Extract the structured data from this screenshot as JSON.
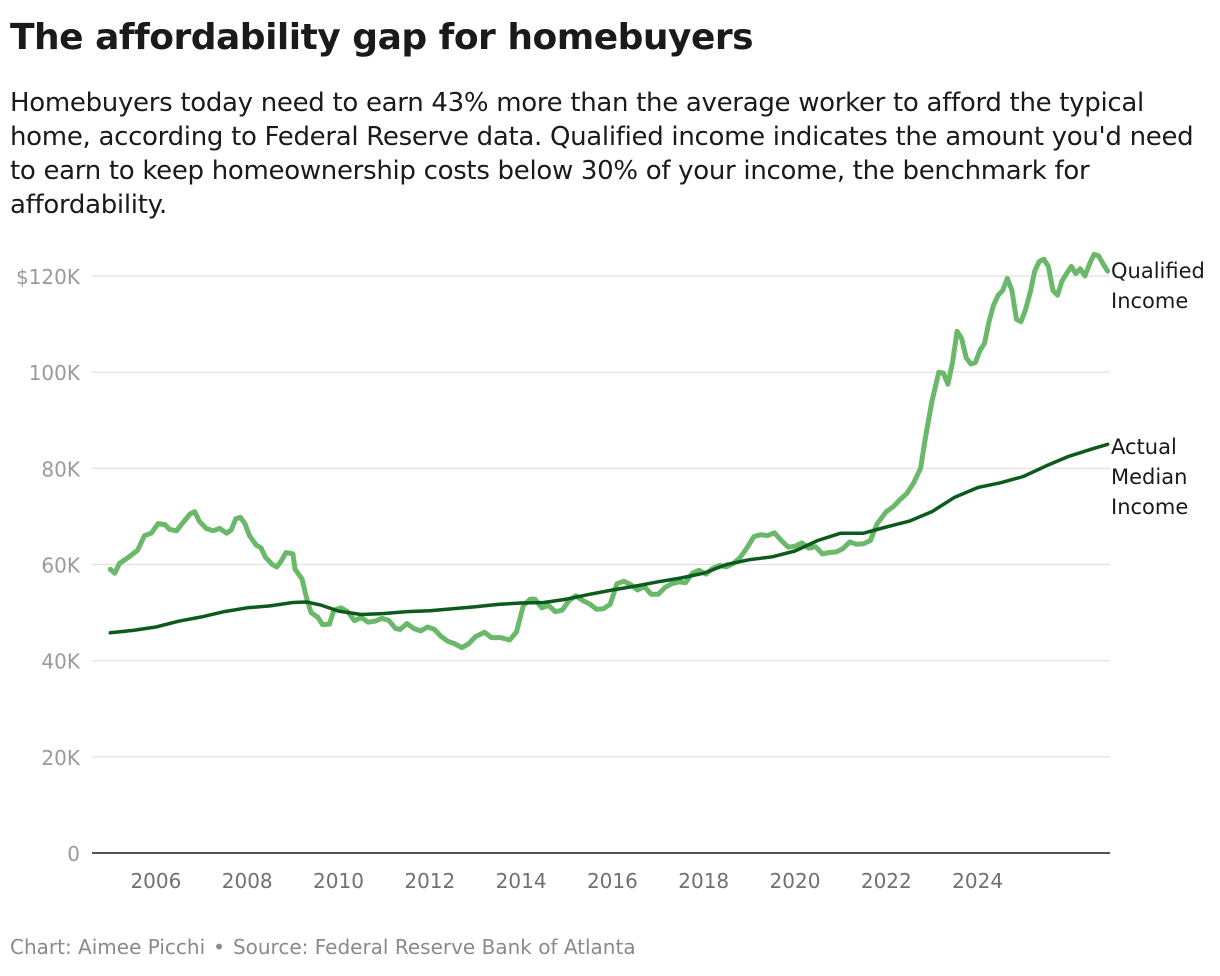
{
  "header": {
    "title": "The affordability gap for homebuyers",
    "subtitle": "Homebuyers today need to earn 43% more than the average worker to afford the typical home, according to Federal Reserve data. Qualified income indicates the amount you'd need to earn to keep homeownership costs below 30% of your income, the benchmark for affordability."
  },
  "footer": {
    "credit": "Chart: Aimee Picchi",
    "separator": "•",
    "source": "Source: Federal Reserve Bank of Atlanta"
  },
  "colors": {
    "qualified": "#6ab96a",
    "actual": "#0d5a1d",
    "grid": "#e0e0e0",
    "axis": "#1a1a1a",
    "tick_text": "#9a9a9a",
    "label_text": "#1a1a1a"
  },
  "chart_data": {
    "type": "line",
    "xlabel": "",
    "ylabel": "",
    "xlim": [
      2004.8,
      2026.0
    ],
    "ylim": [
      0,
      120000
    ],
    "grid": true,
    "legend_placement": "direct labels at right end of lines",
    "x_ticks": [
      {
        "value": 2006,
        "label": "2006"
      },
      {
        "value": 2008,
        "label": "2008"
      },
      {
        "value": 2010,
        "label": "2010"
      },
      {
        "value": 2012,
        "label": "2012"
      },
      {
        "value": 2014,
        "label": "2014"
      },
      {
        "value": 2016,
        "label": "2016"
      },
      {
        "value": 2018,
        "label": "2018"
      },
      {
        "value": 2020,
        "label": "2020"
      },
      {
        "value": 2022,
        "label": "2022"
      },
      {
        "value": 2024,
        "label": "2024"
      }
    ],
    "y_ticks": [
      {
        "value": 0,
        "label": "0"
      },
      {
        "value": 20000,
        "label": "20K"
      },
      {
        "value": 40000,
        "label": "40K"
      },
      {
        "value": 60000,
        "label": "60K"
      },
      {
        "value": 80000,
        "label": "80K"
      },
      {
        "value": 100000,
        "label": "100K"
      },
      {
        "value": 120000,
        "label": "$120K"
      }
    ],
    "series": [
      {
        "name": "Qualified Income",
        "label_lines": [
          "Qualified",
          "Income"
        ],
        "color_key": "qualified",
        "points": [
          [
            2005.0,
            59000
          ],
          [
            2005.1,
            58200
          ],
          [
            2005.2,
            60200
          ],
          [
            2005.4,
            61500
          ],
          [
            2005.6,
            63000
          ],
          [
            2005.75,
            66000
          ],
          [
            2005.9,
            66500
          ],
          [
            2006.05,
            68500
          ],
          [
            2006.2,
            68300
          ],
          [
            2006.3,
            67300
          ],
          [
            2006.45,
            67000
          ],
          [
            2006.6,
            68800
          ],
          [
            2006.75,
            70500
          ],
          [
            2006.85,
            71000
          ],
          [
            2006.95,
            69000
          ],
          [
            2007.1,
            67500
          ],
          [
            2007.25,
            67000
          ],
          [
            2007.4,
            67500
          ],
          [
            2007.55,
            66500
          ],
          [
            2007.65,
            67200
          ],
          [
            2007.75,
            69500
          ],
          [
            2007.85,
            69800
          ],
          [
            2007.95,
            68500
          ],
          [
            2008.05,
            66000
          ],
          [
            2008.2,
            64000
          ],
          [
            2008.3,
            63500
          ],
          [
            2008.4,
            61500
          ],
          [
            2008.55,
            60000
          ],
          [
            2008.65,
            59500
          ],
          [
            2008.75,
            60800
          ],
          [
            2008.85,
            62500
          ],
          [
            2009.0,
            62200
          ],
          [
            2009.05,
            59000
          ],
          [
            2009.2,
            57000
          ],
          [
            2009.3,
            53000
          ],
          [
            2009.4,
            50000
          ],
          [
            2009.55,
            49000
          ],
          [
            2009.65,
            47500
          ],
          [
            2009.8,
            47600
          ],
          [
            2009.9,
            50500
          ],
          [
            2010.05,
            51000
          ],
          [
            2010.2,
            50200
          ],
          [
            2010.35,
            48300
          ],
          [
            2010.5,
            49000
          ],
          [
            2010.65,
            48000
          ],
          [
            2010.8,
            48200
          ],
          [
            2010.95,
            48800
          ],
          [
            2011.1,
            48400
          ],
          [
            2011.25,
            46700
          ],
          [
            2011.35,
            46500
          ],
          [
            2011.5,
            47700
          ],
          [
            2011.65,
            46700
          ],
          [
            2011.8,
            46200
          ],
          [
            2011.95,
            47000
          ],
          [
            2012.1,
            46500
          ],
          [
            2012.25,
            45000
          ],
          [
            2012.4,
            44000
          ],
          [
            2012.55,
            43500
          ],
          [
            2012.7,
            42700
          ],
          [
            2012.85,
            43500
          ],
          [
            2013.0,
            45000
          ],
          [
            2013.2,
            45900
          ],
          [
            2013.35,
            44800
          ],
          [
            2013.55,
            44800
          ],
          [
            2013.75,
            44300
          ],
          [
            2013.9,
            46000
          ],
          [
            2014.05,
            51500
          ],
          [
            2014.2,
            52800
          ],
          [
            2014.3,
            52800
          ],
          [
            2014.45,
            51000
          ],
          [
            2014.6,
            51500
          ],
          [
            2014.75,
            50200
          ],
          [
            2014.9,
            50500
          ],
          [
            2015.05,
            52500
          ],
          [
            2015.2,
            53500
          ],
          [
            2015.35,
            52500
          ],
          [
            2015.5,
            51800
          ],
          [
            2015.65,
            50700
          ],
          [
            2015.8,
            50800
          ],
          [
            2015.95,
            51700
          ],
          [
            2016.1,
            56000
          ],
          [
            2016.25,
            56500
          ],
          [
            2016.4,
            55800
          ],
          [
            2016.55,
            54700
          ],
          [
            2016.7,
            55400
          ],
          [
            2016.85,
            53800
          ],
          [
            2017.0,
            53800
          ],
          [
            2017.15,
            55200
          ],
          [
            2017.3,
            56000
          ],
          [
            2017.45,
            56400
          ],
          [
            2017.6,
            56200
          ],
          [
            2017.75,
            58200
          ],
          [
            2017.9,
            58800
          ],
          [
            2018.05,
            58000
          ],
          [
            2018.2,
            59200
          ],
          [
            2018.35,
            59800
          ],
          [
            2018.5,
            59500
          ],
          [
            2018.65,
            60200
          ],
          [
            2018.8,
            61500
          ],
          [
            2018.95,
            63500
          ],
          [
            2019.1,
            65800
          ],
          [
            2019.25,
            66200
          ],
          [
            2019.4,
            66000
          ],
          [
            2019.55,
            66600
          ],
          [
            2019.7,
            65000
          ],
          [
            2019.85,
            63600
          ],
          [
            2020.0,
            63800
          ],
          [
            2020.15,
            64500
          ],
          [
            2020.3,
            63400
          ],
          [
            2020.45,
            63700
          ],
          [
            2020.6,
            62200
          ],
          [
            2020.75,
            62500
          ],
          [
            2020.9,
            62600
          ],
          [
            2021.05,
            63300
          ],
          [
            2021.2,
            64700
          ],
          [
            2021.35,
            64200
          ],
          [
            2021.5,
            64300
          ],
          [
            2021.65,
            65000
          ],
          [
            2021.8,
            68500
          ],
          [
            2022.0,
            71000
          ],
          [
            2022.15,
            72000
          ],
          [
            2022.3,
            73500
          ],
          [
            2022.45,
            74800
          ],
          [
            2022.6,
            77000
          ],
          [
            2022.75,
            80000
          ],
          [
            2022.85,
            86000
          ],
          [
            2023.0,
            94000
          ],
          [
            2023.15,
            100000
          ],
          [
            2023.25,
            99800
          ],
          [
            2023.35,
            97500
          ],
          [
            2023.45,
            102000
          ],
          [
            2023.55,
            108500
          ],
          [
            2023.65,
            107000
          ],
          [
            2023.75,
            103000
          ],
          [
            2023.85,
            101700
          ],
          [
            2023.95,
            102000
          ],
          [
            2024.05,
            104500
          ],
          [
            2024.15,
            106000
          ],
          [
            2024.25,
            110500
          ],
          [
            2024.35,
            114000
          ],
          [
            2024.45,
            116000
          ],
          [
            2024.55,
            117000
          ],
          [
            2024.65,
            119500
          ],
          [
            2024.75,
            117000
          ],
          [
            2024.85,
            111000
          ],
          [
            2024.95,
            110500
          ],
          [
            2025.05,
            113000
          ],
          [
            2025.15,
            116500
          ],
          [
            2025.25,
            121000
          ],
          [
            2025.35,
            123000
          ],
          [
            2025.45,
            123500
          ],
          [
            2025.55,
            122000
          ],
          [
            2025.65,
            117000
          ],
          [
            2025.75,
            116000
          ],
          [
            2025.85,
            119000
          ],
          [
            2025.95,
            120500
          ],
          [
            2026.05,
            122000
          ],
          [
            2026.15,
            120500
          ],
          [
            2026.25,
            121500
          ],
          [
            2026.35,
            120000
          ],
          [
            2026.45,
            122500
          ],
          [
            2026.55,
            124500
          ],
          [
            2026.65,
            124200
          ],
          [
            2026.75,
            122500
          ],
          [
            2026.85,
            121000
          ]
        ]
      },
      {
        "name": "Actual Median Income",
        "label_lines": [
          "Actual",
          "Median",
          "Income"
        ],
        "color_key": "actual",
        "points": [
          [
            2005.0,
            45800
          ],
          [
            2005.5,
            46300
          ],
          [
            2006.0,
            47000
          ],
          [
            2006.5,
            48200
          ],
          [
            2007.0,
            49100
          ],
          [
            2007.5,
            50200
          ],
          [
            2008.0,
            51000
          ],
          [
            2008.5,
            51400
          ],
          [
            2009.0,
            52100
          ],
          [
            2009.3,
            52200
          ],
          [
            2009.6,
            51600
          ],
          [
            2010.0,
            50300
          ],
          [
            2010.5,
            49600
          ],
          [
            2011.0,
            49800
          ],
          [
            2011.5,
            50200
          ],
          [
            2012.0,
            50400
          ],
          [
            2012.5,
            50800
          ],
          [
            2013.0,
            51200
          ],
          [
            2013.5,
            51700
          ],
          [
            2014.0,
            52000
          ],
          [
            2014.5,
            52100
          ],
          [
            2015.0,
            52800
          ],
          [
            2015.5,
            53800
          ],
          [
            2016.0,
            54700
          ],
          [
            2016.5,
            55500
          ],
          [
            2017.0,
            56400
          ],
          [
            2017.5,
            57200
          ],
          [
            2018.0,
            58200
          ],
          [
            2018.5,
            60000
          ],
          [
            2019.0,
            61000
          ],
          [
            2019.5,
            61600
          ],
          [
            2020.0,
            62800
          ],
          [
            2020.5,
            65000
          ],
          [
            2021.0,
            66500
          ],
          [
            2021.5,
            66500
          ],
          [
            2022.0,
            67800
          ],
          [
            2022.5,
            69000
          ],
          [
            2023.0,
            71000
          ],
          [
            2023.5,
            74000
          ],
          [
            2024.0,
            76000
          ],
          [
            2024.5,
            77000
          ],
          [
            2025.0,
            78300
          ],
          [
            2025.5,
            80500
          ],
          [
            2026.0,
            82500
          ],
          [
            2026.5,
            84000
          ],
          [
            2026.85,
            85000
          ]
        ]
      }
    ]
  }
}
